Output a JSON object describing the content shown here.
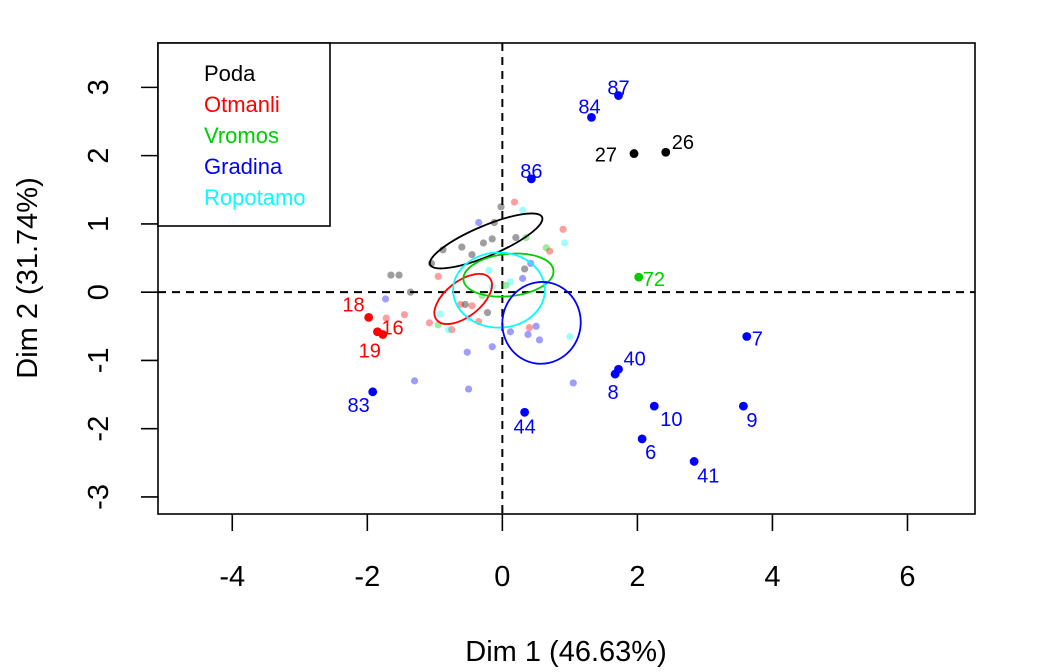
{
  "chart_data": {
    "type": "scatter",
    "title": "",
    "xlabel": "Dim 1 (46.63%)",
    "ylabel": "Dim 2 (31.74%)",
    "xlim": [
      -5.1,
      7.0
    ],
    "ylim": [
      -3.25,
      3.65
    ],
    "xticks": [
      -4,
      -2,
      0,
      2,
      4,
      6
    ],
    "yticks": [
      -3,
      -2,
      -1,
      0,
      1,
      2,
      3
    ],
    "reference_lines": {
      "x": 0,
      "y": 0,
      "style": "dashed"
    },
    "legend": {
      "position": "top-left",
      "entries": [
        {
          "name": "Poda",
          "color": "#000000"
        },
        {
          "name": "Otmanli",
          "color": "#ff0000"
        },
        {
          "name": "Vromos",
          "color": "#00cd00"
        },
        {
          "name": "Gradina",
          "color": "#0000ff"
        },
        {
          "name": "Ropotamo",
          "color": "#00ffff"
        }
      ]
    },
    "labeled_points": [
      {
        "group": "Poda",
        "label": "27",
        "x": 1.95,
        "y": 2.03
      },
      {
        "group": "Poda",
        "label": "26",
        "x": 2.42,
        "y": 2.05
      },
      {
        "group": "Otmanli",
        "label": "18",
        "x": -1.98,
        "y": -0.37
      },
      {
        "group": "Otmanli",
        "label": "16",
        "x": -1.85,
        "y": -0.58
      },
      {
        "group": "Otmanli",
        "label": "19",
        "x": -1.77,
        "y": -0.62
      },
      {
        "group": "Vromos",
        "label": "72",
        "x": 2.02,
        "y": 0.22
      },
      {
        "group": "Gradina",
        "label": "87",
        "x": 1.72,
        "y": 2.88
      },
      {
        "group": "Gradina",
        "label": "84",
        "x": 1.32,
        "y": 2.56
      },
      {
        "group": "Gradina",
        "label": "86",
        "x": 0.43,
        "y": 1.66
      },
      {
        "group": "Gradina",
        "label": "7",
        "x": 3.62,
        "y": -0.65
      },
      {
        "group": "Gradina",
        "label": "40",
        "x": 1.72,
        "y": -1.13
      },
      {
        "group": "Gradina",
        "label": "8",
        "x": 1.67,
        "y": -1.2
      },
      {
        "group": "Gradina",
        "label": "83",
        "x": -1.92,
        "y": -1.46
      },
      {
        "group": "Gradina",
        "label": "10",
        "x": 2.25,
        "y": -1.67
      },
      {
        "group": "Gradina",
        "label": "9",
        "x": 3.57,
        "y": -1.67
      },
      {
        "group": "Gradina",
        "label": "44",
        "x": 0.33,
        "y": -1.76
      },
      {
        "group": "Gradina",
        "label": "6",
        "x": 2.07,
        "y": -2.15
      },
      {
        "group": "Gradina",
        "label": "41",
        "x": 2.84,
        "y": -2.48
      }
    ],
    "faded_points": [
      {
        "group": "Poda",
        "x": -1.65,
        "y": 0.25
      },
      {
        "group": "Poda",
        "x": -1.53,
        "y": 0.25
      },
      {
        "group": "Poda",
        "x": -1.36,
        "y": 0.0
      },
      {
        "group": "Poda",
        "x": -1.05,
        "y": 0.42
      },
      {
        "group": "Poda",
        "x": -0.88,
        "y": 0.62
      },
      {
        "group": "Poda",
        "x": -0.6,
        "y": 0.66
      },
      {
        "group": "Poda",
        "x": -0.45,
        "y": 0.55
      },
      {
        "group": "Poda",
        "x": -0.28,
        "y": 0.72
      },
      {
        "group": "Poda",
        "x": -0.15,
        "y": 0.78
      },
      {
        "group": "Poda",
        "x": -0.12,
        "y": 1.02
      },
      {
        "group": "Poda",
        "x": -0.02,
        "y": 1.25
      },
      {
        "group": "Poda",
        "x": 0.2,
        "y": 0.8
      },
      {
        "group": "Poda",
        "x": 0.33,
        "y": 0.34
      },
      {
        "group": "Poda",
        "x": -0.55,
        "y": -0.18
      },
      {
        "group": "Poda",
        "x": -0.22,
        "y": -0.3
      },
      {
        "group": "Otmanli",
        "x": -1.72,
        "y": -0.38
      },
      {
        "group": "Otmanli",
        "x": -1.45,
        "y": -0.33
      },
      {
        "group": "Otmanli",
        "x": -1.08,
        "y": -0.45
      },
      {
        "group": "Otmanli",
        "x": -0.95,
        "y": 0.23
      },
      {
        "group": "Otmanli",
        "x": -0.62,
        "y": -0.18
      },
      {
        "group": "Otmanli",
        "x": -0.45,
        "y": -0.2
      },
      {
        "group": "Otmanli",
        "x": -0.35,
        "y": -0.43
      },
      {
        "group": "Otmanli",
        "x": -0.75,
        "y": -0.55
      },
      {
        "group": "Otmanli",
        "x": 0.18,
        "y": 1.32
      },
      {
        "group": "Otmanli",
        "x": 0.4,
        "y": -0.52
      },
      {
        "group": "Otmanli",
        "x": 0.9,
        "y": 0.92
      },
      {
        "group": "Otmanli",
        "x": 0.7,
        "y": 0.6
      },
      {
        "group": "Vromos",
        "x": -0.95,
        "y": -0.48
      },
      {
        "group": "Vromos",
        "x": -0.3,
        "y": -0.05
      },
      {
        "group": "Vromos",
        "x": 0.35,
        "y": 0.8
      },
      {
        "group": "Vromos",
        "x": 0.65,
        "y": 0.65
      },
      {
        "group": "Vromos",
        "x": 0.05,
        "y": 0.1
      },
      {
        "group": "Gradina",
        "x": -1.73,
        "y": -0.1
      },
      {
        "group": "Gradina",
        "x": -1.3,
        "y": -1.3
      },
      {
        "group": "Gradina",
        "x": -0.52,
        "y": -0.88
      },
      {
        "group": "Gradina",
        "x": -0.5,
        "y": -1.42
      },
      {
        "group": "Gradina",
        "x": -0.15,
        "y": -0.8
      },
      {
        "group": "Gradina",
        "x": 0.12,
        "y": -0.58
      },
      {
        "group": "Gradina",
        "x": 0.38,
        "y": -0.62
      },
      {
        "group": "Gradina",
        "x": 0.5,
        "y": -0.5
      },
      {
        "group": "Gradina",
        "x": 0.55,
        "y": -0.7
      },
      {
        "group": "Gradina",
        "x": 0.42,
        "y": 0.42
      },
      {
        "group": "Gradina",
        "x": 0.3,
        "y": 0.2
      },
      {
        "group": "Gradina",
        "x": 1.05,
        "y": -1.33
      },
      {
        "group": "Gradina",
        "x": -0.35,
        "y": 1.02
      },
      {
        "group": "Ropotamo",
        "x": -0.92,
        "y": -0.32
      },
      {
        "group": "Ropotamo",
        "x": -0.8,
        "y": -0.55
      },
      {
        "group": "Ropotamo",
        "x": -0.15,
        "y": 0.08
      },
      {
        "group": "Ropotamo",
        "x": 0.12,
        "y": 0.15
      },
      {
        "group": "Ropotamo",
        "x": 0.3,
        "y": 1.2
      },
      {
        "group": "Ropotamo",
        "x": 0.92,
        "y": 0.72
      },
      {
        "group": "Ropotamo",
        "x": 1.0,
        "y": -0.65
      },
      {
        "group": "Ropotamo",
        "x": -0.5,
        "y": -0.38
      },
      {
        "group": "Ropotamo",
        "x": -0.2,
        "y": 0.32
      }
    ],
    "confidence_ellipses": [
      {
        "group": "Poda",
        "cx": -0.24,
        "cy": 0.75,
        "rx": 0.9,
        "ry": 0.22,
        "angle": 23
      },
      {
        "group": "Otmanli",
        "cx": -0.58,
        "cy": -0.1,
        "rx": 0.5,
        "ry": 0.26,
        "angle": 38
      },
      {
        "group": "Vromos",
        "cx": 0.09,
        "cy": 0.25,
        "rx": 0.67,
        "ry": 0.31,
        "angle": 6
      },
      {
        "group": "Ropotamo",
        "cx": -0.05,
        "cy": 0.03,
        "rx": 0.68,
        "ry": 0.55,
        "angle": 0
      },
      {
        "group": "Gradina",
        "cx": 0.58,
        "cy": -0.45,
        "rx": 0.58,
        "ry": 0.6,
        "angle": -10
      }
    ]
  }
}
